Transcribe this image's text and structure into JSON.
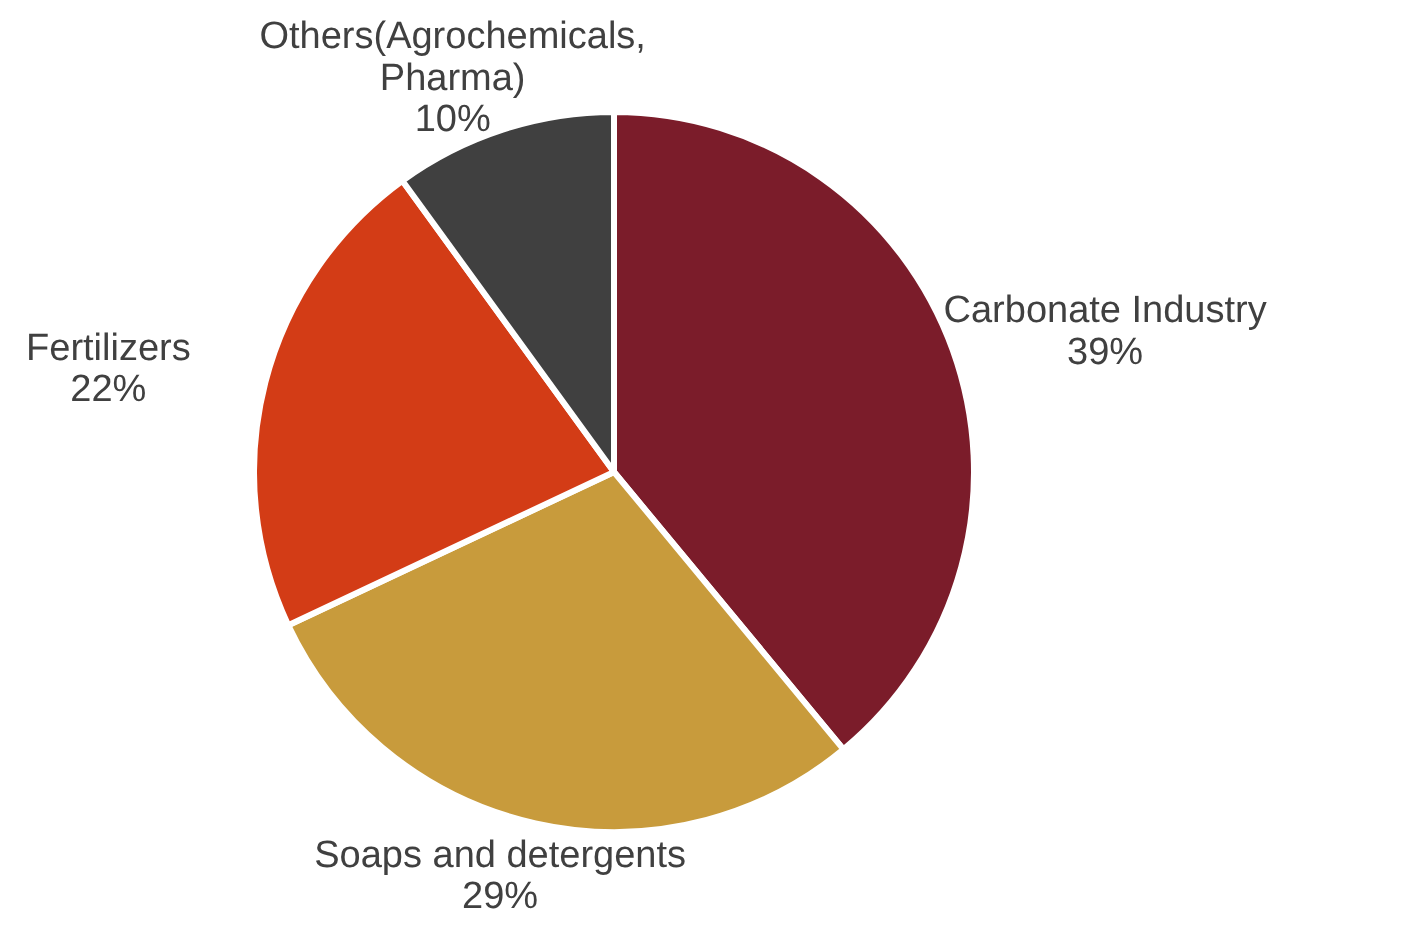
{
  "chart_data": {
    "type": "pie",
    "categories": [
      "Carbonate Industry",
      "Soaps and detergents",
      "Fertilizers",
      "Others(Agrochemicals, Pharma)"
    ],
    "values": [
      39,
      29,
      22,
      10
    ],
    "value_labels": [
      "39%",
      "29%",
      "22%",
      "10%"
    ],
    "colors": [
      "#7b1c2a",
      "#c89b3c",
      "#d33c16",
      "#404040"
    ]
  }
}
